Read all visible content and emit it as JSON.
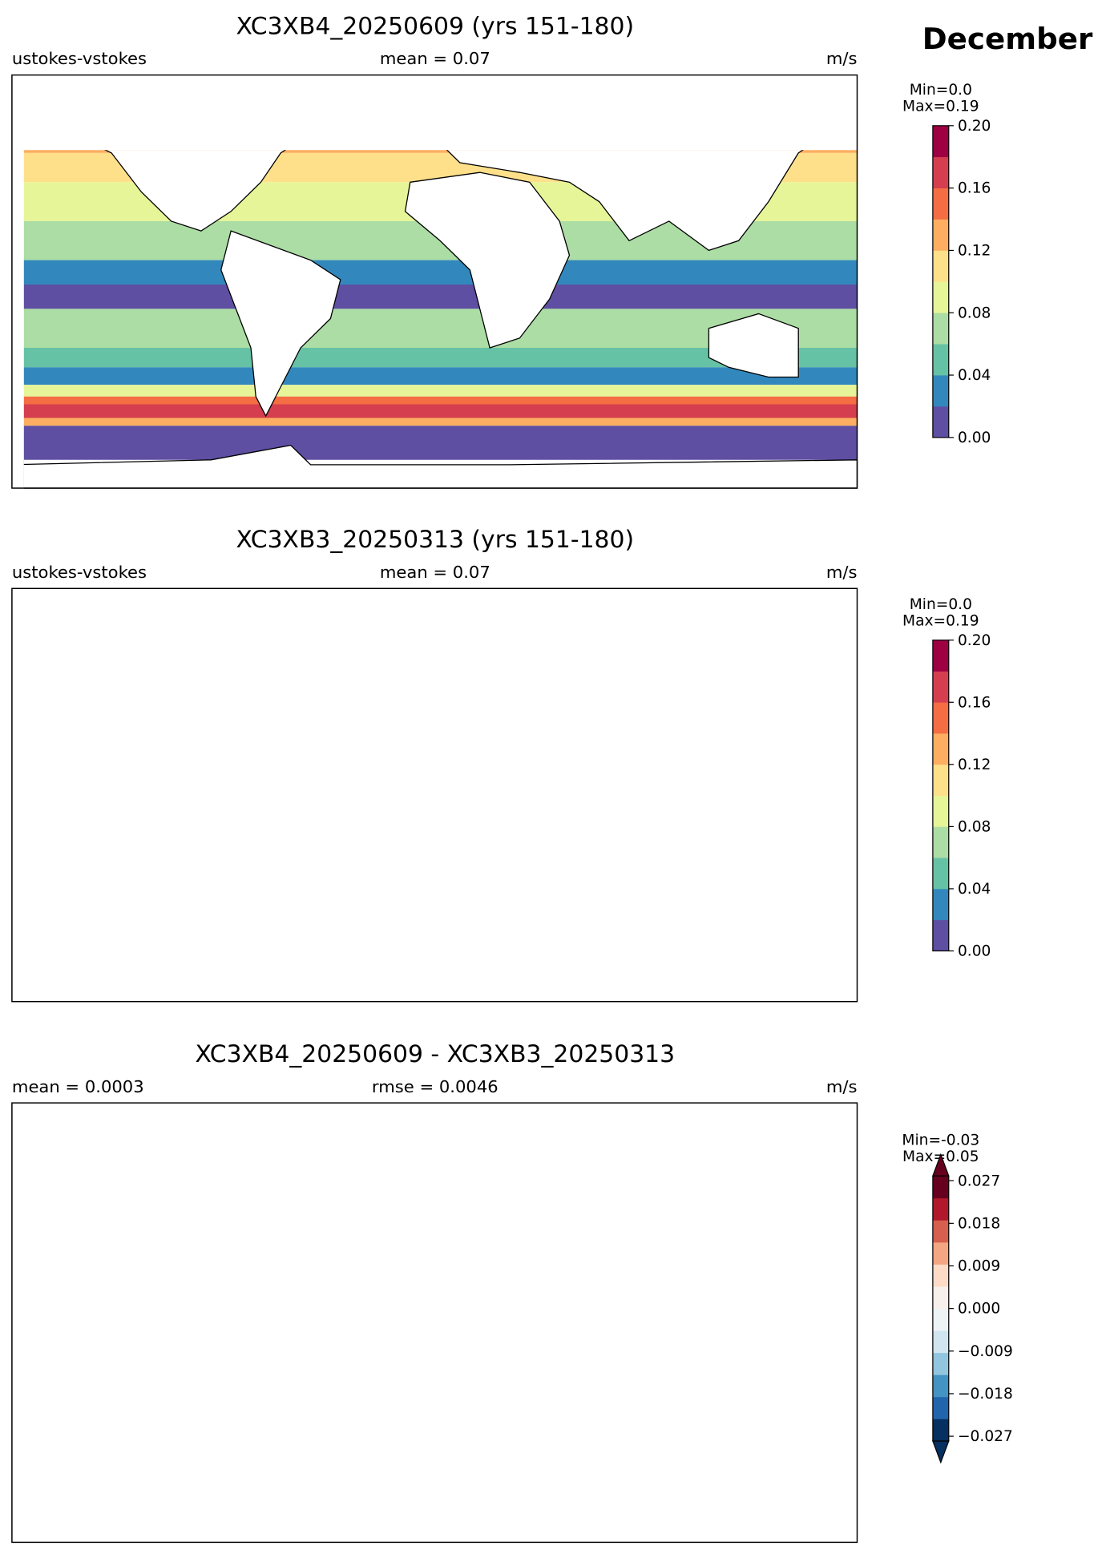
{
  "figure_title": "December",
  "panels": [
    {
      "title": "XC3XB4_20250609 (yrs 151-180)",
      "left": "ustokes-vstokes",
      "center": "mean = 0.07",
      "right": "m/s",
      "colorbar": {
        "min_label": "Min=0.0",
        "max_label": "Max=0.19",
        "lim": [
          0,
          0.2
        ],
        "extend": false,
        "ticks": [
          {
            "value": 0,
            "label": "0.00"
          },
          {
            "value": 0.04,
            "label": "0.04"
          },
          {
            "value": 0.08,
            "label": "0.08"
          },
          {
            "value": 0.12,
            "label": "0.12"
          },
          {
            "value": 0.16,
            "label": "0.16"
          },
          {
            "value": 0.2,
            "label": "0.20"
          }
        ],
        "colors": [
          "#5e4fa2",
          "#3288bd",
          "#66c2a5",
          "#abdda4",
          "#e6f598",
          "#fee08b",
          "#fdae61",
          "#f46d43",
          "#d53e4f",
          "#9e0142"
        ]
      }
    },
    {
      "title": "XC3XB3_20250313 (yrs 151-180)",
      "left": "ustokes-vstokes",
      "center": "mean = 0.07",
      "right": "m/s",
      "colorbar": {
        "min_label": "Min=0.0",
        "max_label": "Max=0.19",
        "lim": [
          0,
          0.2
        ],
        "extend": false,
        "ticks": [
          {
            "value": 0,
            "label": "0.00"
          },
          {
            "value": 0.04,
            "label": "0.04"
          },
          {
            "value": 0.08,
            "label": "0.08"
          },
          {
            "value": 0.12,
            "label": "0.12"
          },
          {
            "value": 0.16,
            "label": "0.16"
          },
          {
            "value": 0.2,
            "label": "0.20"
          }
        ],
        "colors": [
          "#5e4fa2",
          "#3288bd",
          "#66c2a5",
          "#abdda4",
          "#e6f598",
          "#fee08b",
          "#fdae61",
          "#f46d43",
          "#d53e4f",
          "#9e0142"
        ]
      }
    },
    {
      "title": "XC3XB4_20250609 - XC3XB3_20250313",
      "left": "mean = 0.0003",
      "center": "rmse = 0.0046",
      "right": "m/s",
      "colorbar": {
        "min_label": "Min=-0.03",
        "max_label": "Max=0.05",
        "lim": [
          -0.028,
          0.028
        ],
        "extend": true,
        "ticks": [
          {
            "value": -0.027,
            "label": "−0.027"
          },
          {
            "value": -0.018,
            "label": "−0.018"
          },
          {
            "value": -0.009,
            "label": "−0.009"
          },
          {
            "value": 0,
            "label": "0.000"
          },
          {
            "value": 0.009,
            "label": "0.009"
          },
          {
            "value": 0.018,
            "label": "0.018"
          },
          {
            "value": 0.027,
            "label": "0.027"
          }
        ],
        "colors": [
          "#053061",
          "#2166ac",
          "#4393c3",
          "#92c5de",
          "#d1e5f0",
          "#eef3f6",
          "#f7efec",
          "#fddbc7",
          "#f4a582",
          "#d6604d",
          "#b2182b",
          "#67001f"
        ]
      }
    }
  ]
}
